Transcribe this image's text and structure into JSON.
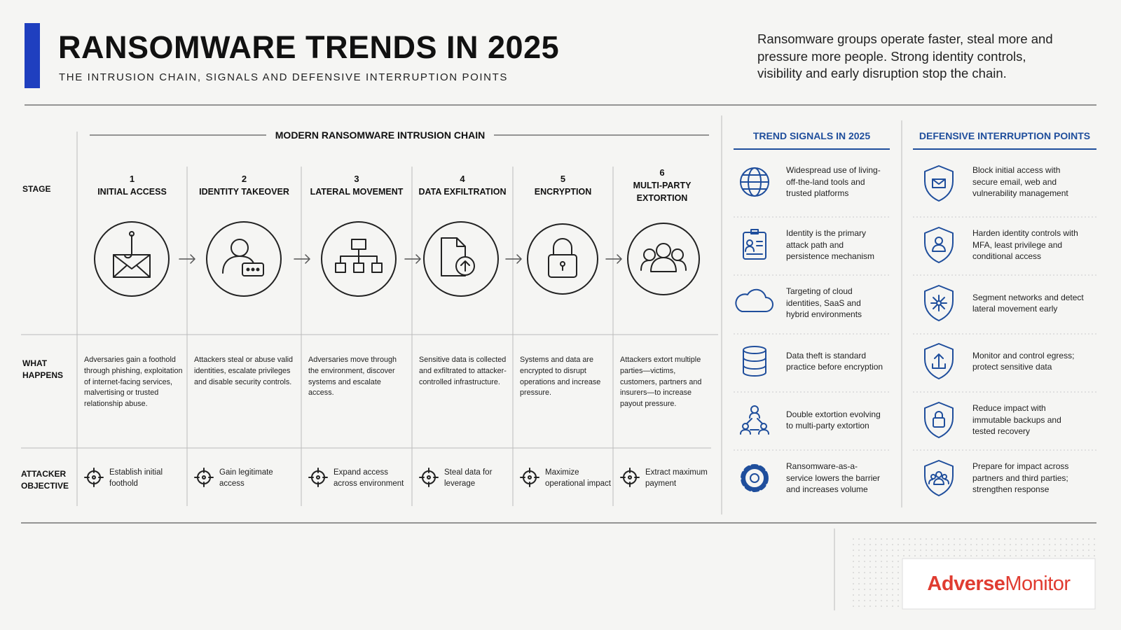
{
  "header": {
    "title": "RANSOMWARE TRENDS IN 2025",
    "subtitle": "THE INTRUSION CHAIN, SIGNALS AND DEFENSIVE INTERRUPTION POINTS",
    "summary": "Ransomware groups operate faster, steal more and pressure more people. Strong identity controls, visibility and early disruption stop the chain."
  },
  "chain": {
    "title": "MODERN RANSOMWARE INTRUSION CHAIN",
    "row_labels": {
      "stage": "STAGE",
      "what": "WHAT HAPPENS",
      "objective": "ATTACKER OBJECTIVE"
    },
    "stages": [
      {
        "number": 1,
        "name": "INITIAL ACCESS",
        "what": "Adversaries gain a foothold through phishing, exploitation of internet-facing services, malvertising or trusted relationship abuse.",
        "objective": "Establish initial foothold"
      },
      {
        "number": 2,
        "name": "IDENTITY TAKEOVER",
        "what": "Attackers steal or abuse valid identities, escalate privileges and disable security controls.",
        "objective": "Gain legitimate access"
      },
      {
        "number": 3,
        "name": "LATERAL MOVEMENT",
        "what": "Adversaries move through the environment, discover systems and escalate access.",
        "objective": "Expand access across environment"
      },
      {
        "number": 4,
        "name": "DATA EXFILTRATION",
        "what": "Sensitive data is collected and exfiltrated to attacker-controlled infrastructure.",
        "objective": "Steal data for leverage"
      },
      {
        "number": 5,
        "name": "ENCRYPTION",
        "what": "Systems and data are encrypted to disrupt operations and increase pressure.",
        "objective": "Maximize operational impact"
      },
      {
        "number": 6,
        "name": "MULTI-PARTY EXTORTION",
        "what": "Attackers extort multiple parties—victims, customers, partners and insurers—to increase payout pressure.",
        "objective": "Extract maximum payment"
      }
    ]
  },
  "signals": {
    "title": "TREND SIGNALS IN 2025",
    "items": [
      "Widespread use of living-off-the-land tools and trusted platforms",
      "Identity is the primary attack path and persistence mechanism",
      "Targeting of cloud identities, SaaS and hybrid environments",
      "Data theft is standard practice before encryption",
      "Double extortion evolving to multi-party extortion",
      "Ransomware-as-a-service lowers the barrier and increases volume"
    ]
  },
  "defense": {
    "title": "DEFENSIVE INTERRUPTION POINTS",
    "items": [
      "Block initial access with secure email, web and vulnerability management",
      "Harden identity controls with MFA, least privilege and conditional access",
      "Segment networks and detect lateral movement early",
      "Monitor and control egress; protect sensitive data",
      "Reduce impact with immutable backups and tested recovery",
      "Prepare for impact across partners and third parties; strengthen response"
    ]
  },
  "logo": {
    "first": "Adverse",
    "second": "Monitor"
  }
}
